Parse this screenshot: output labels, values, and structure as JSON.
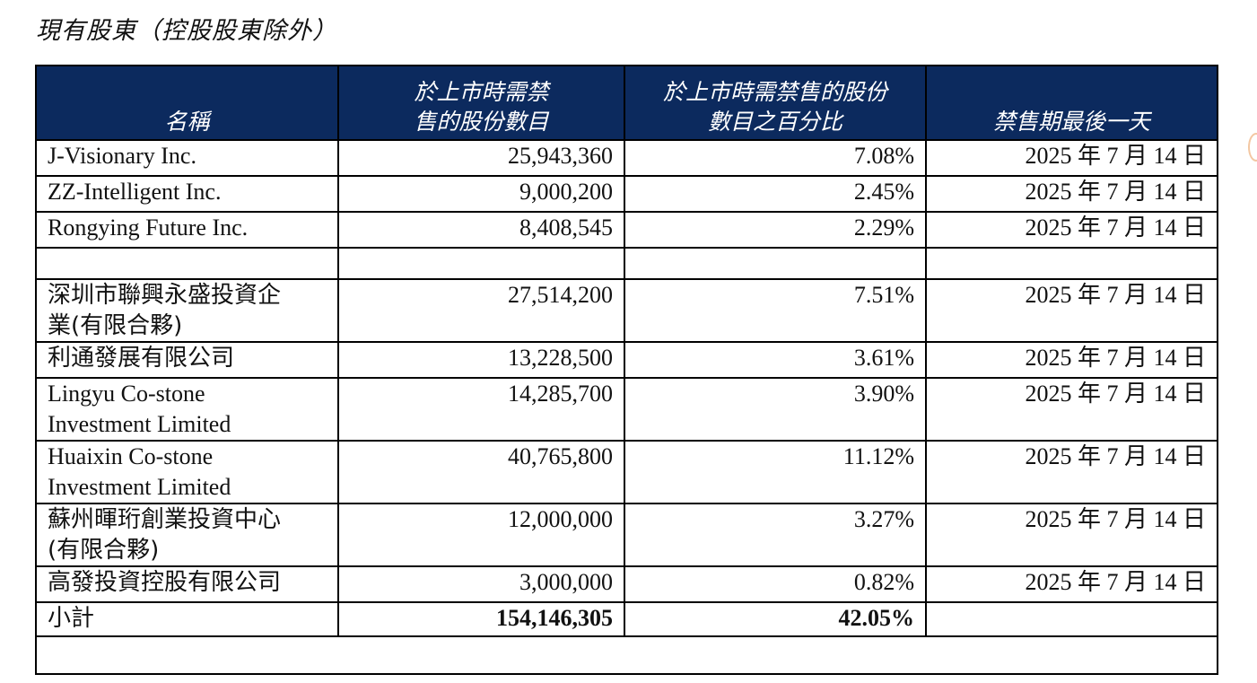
{
  "section_title": "現有股東（控股股東除外）",
  "headers": {
    "name": "名稱",
    "shares_line1": "於上市時需禁",
    "shares_line2": "售的股份數目",
    "pct_line1": "於上市時需禁售的股份",
    "pct_line2": "數目之百分比",
    "last_day": "禁售期最後一天"
  },
  "rows": [
    {
      "name": "J-Visionary Inc.",
      "shares": "25,943,360",
      "pct": "7.08%",
      "date": "2025 年 7 月 14 日"
    },
    {
      "name": "ZZ-Intelligent Inc.",
      "shares": "9,000,200",
      "pct": "2.45%",
      "date": "2025 年 7 月 14 日"
    },
    {
      "name": "Rongying Future Inc.",
      "shares": "8,408,545",
      "pct": "2.29%",
      "date": "2025 年 7 月 14 日"
    },
    {
      "name_l1": "深圳市聯興永盛投資企",
      "name_l2": "業(有限合夥)",
      "shares": "27,514,200",
      "pct": "7.51%",
      "date": "2025 年 7 月 14 日"
    },
    {
      "name": "利通發展有限公司",
      "shares": "13,228,500",
      "pct": "3.61%",
      "date": "2025 年 7 月 14 日"
    },
    {
      "name_l1": "Lingyu Co-stone",
      "name_l2": "Investment Limited",
      "shares": "14,285,700",
      "pct": "3.90%",
      "date": "2025 年 7 月 14 日"
    },
    {
      "name_l1": "Huaixin Co-stone",
      "name_l2": "Investment Limited",
      "shares": "40,765,800",
      "pct": "11.12%",
      "date": "2025 年 7 月 14 日"
    },
    {
      "name_l1": "蘇州暉珩創業投資中心",
      "name_l2": "(有限合夥)",
      "shares": "12,000,000",
      "pct": "3.27%",
      "date": "2025 年 7 月 14 日"
    },
    {
      "name": "高發投資控股有限公司",
      "shares": "3,000,000",
      "pct": "0.82%",
      "date": "2025 年 7 月 14 日"
    }
  ],
  "subtotal": {
    "label": "小計",
    "shares": "154,146,305",
    "pct": "42.05%"
  }
}
